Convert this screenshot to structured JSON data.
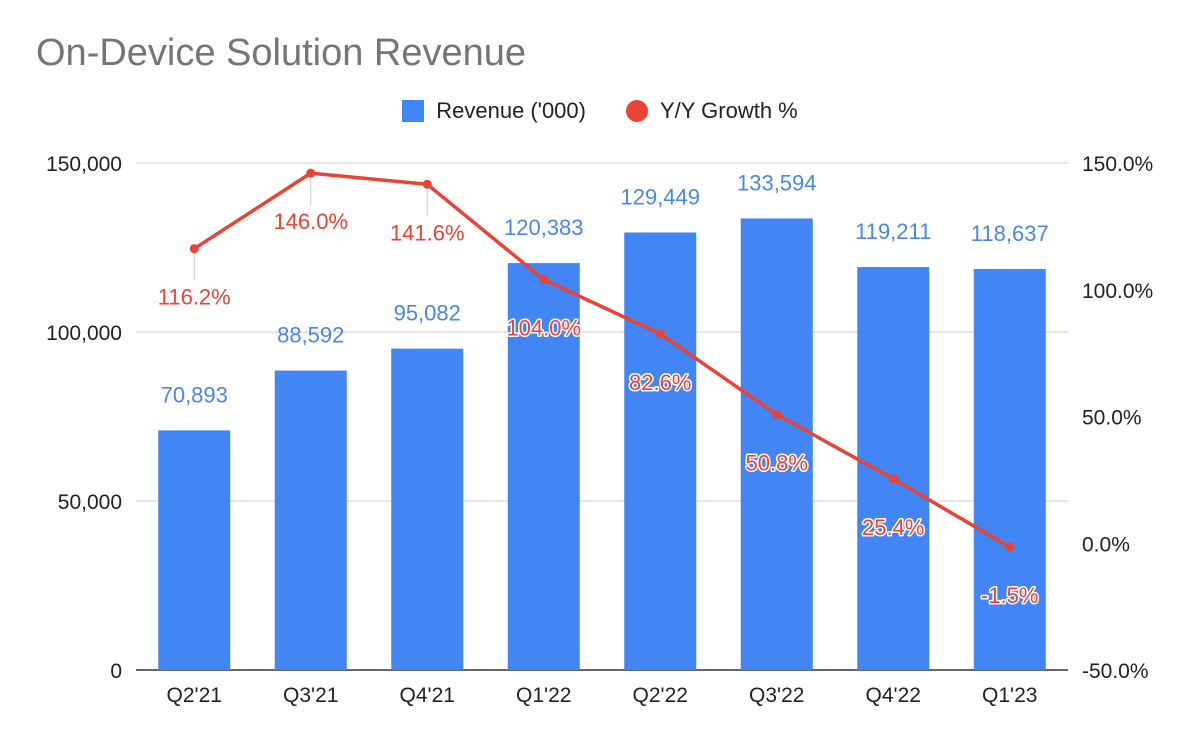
{
  "chart_data": {
    "type": "bar",
    "title": "On-Device Solution Revenue",
    "categories": [
      "Q2'21",
      "Q3'21",
      "Q4'21",
      "Q1'22",
      "Q2'22",
      "Q3'22",
      "Q4'22",
      "Q1'23"
    ],
    "series": [
      {
        "name": "Revenue ('000)",
        "type": "bar",
        "axis": "left",
        "color": "#4285f4",
        "values": [
          70893,
          88592,
          95082,
          120383,
          129449,
          133594,
          119211,
          118637
        ],
        "labels": [
          "70,893",
          "88,592",
          "95,082",
          "120,383",
          "129,449",
          "133,594",
          "119,211",
          "118,637"
        ]
      },
      {
        "name": "Y/Y Growth %",
        "type": "line",
        "axis": "right",
        "color": "#ea4335",
        "values": [
          116.2,
          146.0,
          141.6,
          104.0,
          82.6,
          50.8,
          25.4,
          -1.5
        ],
        "labels": [
          "116.2%",
          "146.0%",
          "141.6%",
          "104.0%",
          "82.6%",
          "50.8%",
          "25.4%",
          "-1.5%"
        ]
      }
    ],
    "y_left": {
      "ylim": [
        0,
        150000
      ],
      "ticks": [
        0,
        50000,
        100000,
        150000
      ],
      "tick_labels": [
        "0",
        "50,000",
        "100,000",
        "150,000"
      ]
    },
    "y_right": {
      "ylim": [
        -50,
        150
      ],
      "ticks": [
        -50,
        0,
        50,
        100,
        150
      ],
      "tick_labels": [
        "-50.0%",
        "0.0%",
        "50.0%",
        "100.0%",
        "150.0%"
      ]
    },
    "grid": true,
    "legend_position": "top-center",
    "xlabel": "",
    "ylabel": ""
  }
}
